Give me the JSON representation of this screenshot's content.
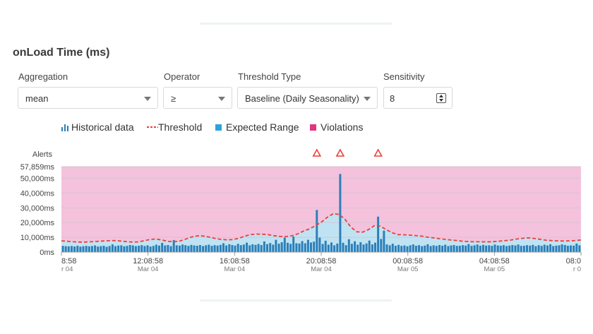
{
  "panel": {
    "title": "onLoad Time (ms)"
  },
  "controls": {
    "aggregation": {
      "label": "Aggregation",
      "value": "mean"
    },
    "operator": {
      "label": "Operator",
      "value": "≥"
    },
    "threshold_type": {
      "label": "Threshold Type",
      "value": "Baseline (Daily Seasonality)"
    },
    "sensitivity": {
      "label": "Sensitivity",
      "value": "8"
    }
  },
  "legend": {
    "historical": "Historical data",
    "threshold": "Threshold",
    "expected": "Expected Range",
    "violations": "Violations"
  },
  "colors": {
    "bar": "#2c7fb8",
    "expected": "#bfe3f3",
    "violation": "#f4c2dc",
    "threshold": "#e8413a",
    "violation_marker": "#e8413a"
  },
  "chart_data": {
    "type": "bar",
    "alerts_label": "Alerts",
    "ylim": [
      0,
      57859
    ],
    "y_ticks": [
      "57,859ms",
      "50,000ms",
      "40,000ms",
      "30,000ms",
      "20,000ms",
      "10,000ms",
      "0ms"
    ],
    "y_tick_values": [
      57859,
      50000,
      40000,
      30000,
      20000,
      10000,
      0
    ],
    "x_ticks": [
      {
        "time": "8:58",
        "date": "r 04"
      },
      {
        "time": "12:08:58",
        "date": "Mar 04"
      },
      {
        "time": "16:08:58",
        "date": "Mar 04"
      },
      {
        "time": "20:08:58",
        "date": "Mar 04"
      },
      {
        "time": "00:08:58",
        "date": "Mar 05"
      },
      {
        "time": "04:08:58",
        "date": "Mar 05"
      },
      {
        "time": "08:0",
        "date": "r 0"
      }
    ],
    "alerts_at_bar_index": [
      87,
      95,
      108
    ],
    "historical_values": [
      4200,
      4000,
      3900,
      4100,
      3800,
      4300,
      3700,
      4000,
      4200,
      3900,
      4100,
      4500,
      3800,
      4000,
      4300,
      3600,
      4100,
      5200,
      4000,
      4400,
      4600,
      3900,
      4200,
      4800,
      4500,
      4000,
      4300,
      4700,
      4100,
      4600,
      3800,
      4200,
      5000,
      4400,
      6200,
      4500,
      4800,
      4000,
      8200,
      4600,
      4400,
      5100,
      4700,
      4200,
      4900,
      4500,
      4300,
      4800,
      4100,
      4600,
      5000,
      4200,
      4700,
      4400,
      4900,
      6000,
      4500,
      5300,
      4800,
      4400,
      5600,
      4700,
      5100,
      6400,
      4600,
      5300,
      4900,
      5500,
      4800,
      7200,
      5400,
      6100,
      5000,
      8300,
      5700,
      6700,
      9800,
      6300,
      5600,
      10500,
      6000,
      5800,
      7400,
      6000,
      8300,
      6500,
      7100,
      28500,
      9800,
      5500,
      7700,
      5000,
      6500,
      4600,
      5800,
      52900,
      6300,
      4700,
      8700,
      5600,
      7300,
      5000,
      6700,
      5100,
      5900,
      7800,
      5200,
      6400,
      24000,
      8900,
      14500,
      5200,
      4600,
      5700,
      4300,
      4900,
      4200,
      4500,
      3900,
      4600,
      5200,
      4300,
      4700,
      4000,
      4400,
      5300,
      4100,
      4600,
      4200,
      4800,
      4300,
      5000,
      4100,
      4500,
      4800,
      4200,
      4300,
      4700,
      4400,
      5400,
      4200,
      4600,
      5100,
      4300,
      4900,
      4400,
      4600,
      4200,
      5100,
      4500,
      4300,
      4700,
      4100,
      4400,
      4800,
      4500,
      5100,
      4200,
      4300,
      4700,
      4400,
      4900,
      4000,
      4700,
      4200,
      5000,
      4500,
      5300,
      4100,
      4400,
      4600,
      5200,
      4800,
      4300,
      4500,
      4400,
      5800,
      4600
    ],
    "threshold_values": [
      7600,
      7300,
      7000,
      6800,
      6800,
      7000,
      7200,
      7500,
      7700,
      7800,
      7500,
      7100,
      6800,
      6900,
      7700,
      8500,
      8900,
      8200,
      7300,
      7000,
      7400,
      8700,
      10200,
      11000,
      10900,
      10200,
      9300,
      8600,
      8300,
      8400,
      9300,
      10700,
      11800,
      12200,
      12100,
      11800,
      11100,
      10600,
      10500,
      11000,
      12300,
      14200,
      15700,
      17800,
      20200,
      23500,
      25900,
      25600,
      22300,
      17000,
      13700,
      13500,
      15200,
      17900,
      17600,
      15200,
      13100,
      11800,
      11700,
      11500,
      11200,
      10800,
      10100,
      9600,
      9100,
      8600,
      8200,
      7800,
      7300,
      7100,
      7000,
      7000,
      6900,
      7000,
      7300,
      7700,
      8100,
      8800,
      9300,
      9600,
      9300,
      8700,
      8100,
      7800,
      7600,
      7500,
      7600,
      7800,
      8200
    ]
  }
}
